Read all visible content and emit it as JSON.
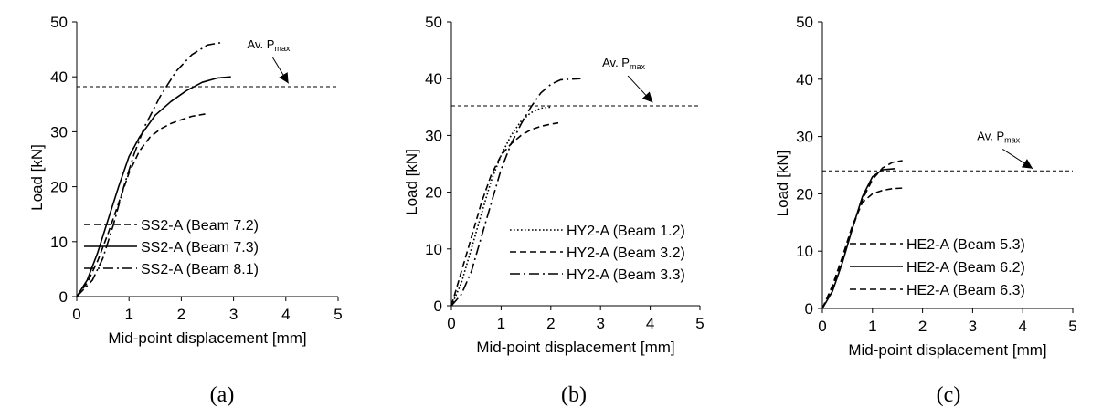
{
  "chart_data": [
    {
      "type": "line",
      "caption": "(a)",
      "xlabel": "Mid-point displacement [mm]",
      "ylabel": "Load [kN]",
      "xlim": [
        0,
        5
      ],
      "ylim": [
        0,
        50
      ],
      "xticks": [
        "0",
        "1",
        "2",
        "3",
        "4",
        "5"
      ],
      "yticks": [
        "0",
        "10",
        "20",
        "30",
        "40",
        "50"
      ],
      "grid": false,
      "legend": "bottom-right",
      "reference_line": {
        "y": 38.2,
        "label": "Av. P",
        "label_sub": "max"
      },
      "annotation_arrow": {
        "from": [
          3.75,
          43.5
        ],
        "to": [
          4.05,
          38.8
        ]
      },
      "series": [
        {
          "name": "SS2-A (Beam 7.2)",
          "style": "dashed",
          "x": [
            0,
            0.2,
            0.4,
            0.6,
            0.8,
            1.0,
            1.2,
            1.4,
            1.6,
            1.8,
            2.0,
            2.2,
            2.5
          ],
          "y": [
            0,
            2.5,
            6.5,
            11.5,
            17,
            22.5,
            26.5,
            29,
            30.5,
            31.5,
            32.2,
            32.8,
            33.3
          ]
        },
        {
          "name": "SS2-A (Beam 7.3)",
          "style": "solid",
          "x": [
            0,
            0.2,
            0.4,
            0.6,
            0.8,
            1.0,
            1.2,
            1.5,
            1.8,
            2.1,
            2.4,
            2.7,
            2.95
          ],
          "y": [
            0,
            3,
            8,
            14,
            20,
            25.5,
            29,
            33,
            35.5,
            37.5,
            39,
            39.8,
            40
          ]
        },
        {
          "name": "SS2-A (Beam 8.1)",
          "style": "dashdot",
          "x": [
            0,
            0.3,
            0.5,
            0.7,
            0.9,
            1.1,
            1.3,
            1.6,
            1.9,
            2.2,
            2.5,
            2.8
          ],
          "y": [
            0,
            3,
            7,
            13,
            20,
            26,
            31,
            36.5,
            41,
            44,
            45.8,
            46.3
          ]
        }
      ]
    },
    {
      "type": "line",
      "caption": "(b)",
      "xlabel": "Mid-point displacement [mm]",
      "ylabel": "Load [kN]",
      "xlim": [
        0,
        5
      ],
      "ylim": [
        0,
        50
      ],
      "xticks": [
        "0",
        "1",
        "2",
        "3",
        "4",
        "5"
      ],
      "yticks": [
        "0",
        "10",
        "20",
        "30",
        "40",
        "50"
      ],
      "grid": false,
      "legend": "bottom-right",
      "reference_line": {
        "y": 35.2,
        "label": "Av. P",
        "label_sub": "max"
      },
      "annotation_arrow": {
        "from": [
          3.55,
          40.5
        ],
        "to": [
          4.05,
          35.8
        ]
      },
      "series": [
        {
          "name": "HY2-A (Beam 1.2)",
          "style": "dotted",
          "x": [
            0,
            0.2,
            0.4,
            0.6,
            0.8,
            1.0,
            1.2,
            1.4,
            1.6,
            1.8,
            2.0
          ],
          "y": [
            0,
            4,
            10,
            16,
            22,
            26.5,
            30,
            32.5,
            34,
            34.8,
            35
          ]
        },
        {
          "name": "HY2-A (Beam 3.2)",
          "style": "dashed",
          "x": [
            0,
            0.2,
            0.4,
            0.6,
            0.8,
            1.0,
            1.2,
            1.4,
            1.6,
            1.8,
            2.0,
            2.15
          ],
          "y": [
            0,
            6,
            12,
            18,
            23,
            26.5,
            28.5,
            30,
            31,
            31.6,
            32,
            32.2
          ]
        },
        {
          "name": "HY2-A (Beam 3.3)",
          "style": "dashdot",
          "x": [
            0,
            0.2,
            0.4,
            0.6,
            0.8,
            1.0,
            1.2,
            1.4,
            1.6,
            1.8,
            2.0,
            2.2,
            2.6
          ],
          "y": [
            0,
            2,
            6,
            12,
            18,
            24,
            28.5,
            32,
            35,
            37.5,
            39,
            39.8,
            40
          ]
        }
      ]
    },
    {
      "type": "line",
      "caption": "(c)",
      "xlabel": "Mid-point displacement [mm]",
      "ylabel": "Load [kN]",
      "xlim": [
        0,
        5
      ],
      "ylim": [
        0,
        50
      ],
      "xticks": [
        "0",
        "1",
        "2",
        "3",
        "4",
        "5"
      ],
      "yticks": [
        "0",
        "10",
        "20",
        "30",
        "40",
        "50"
      ],
      "grid": false,
      "legend": "bottom-right",
      "reference_line": {
        "y": 24,
        "label": "Av. P",
        "label_sub": "max"
      },
      "annotation_arrow": {
        "from": [
          3.6,
          27.8
        ],
        "to": [
          4.2,
          24.4
        ]
      },
      "series": [
        {
          "name": "HE2-A (Beam 5.3)",
          "style": "dashed",
          "x": [
            0,
            0.2,
            0.4,
            0.6,
            0.8,
            1.0,
            1.2,
            1.4,
            1.6
          ],
          "y": [
            0,
            3.5,
            8.5,
            14,
            19,
            22.5,
            24.5,
            25.5,
            25.8
          ]
        },
        {
          "name": "HE2-A (Beam 6.2)",
          "style": "solid",
          "x": [
            0,
            0.2,
            0.4,
            0.6,
            0.8,
            1.0,
            1.2,
            1.45
          ],
          "y": [
            0,
            3,
            8,
            14,
            19.5,
            23,
            24.2,
            24.4
          ]
        },
        {
          "name": "HE2-A (Beam 6.3)",
          "style": "dashed",
          "x": [
            0,
            0.2,
            0.4,
            0.6,
            0.8,
            1.0,
            1.2,
            1.4,
            1.6
          ],
          "y": [
            0,
            4,
            9,
            14.5,
            18.5,
            20,
            20.6,
            20.9,
            21
          ]
        }
      ]
    }
  ]
}
